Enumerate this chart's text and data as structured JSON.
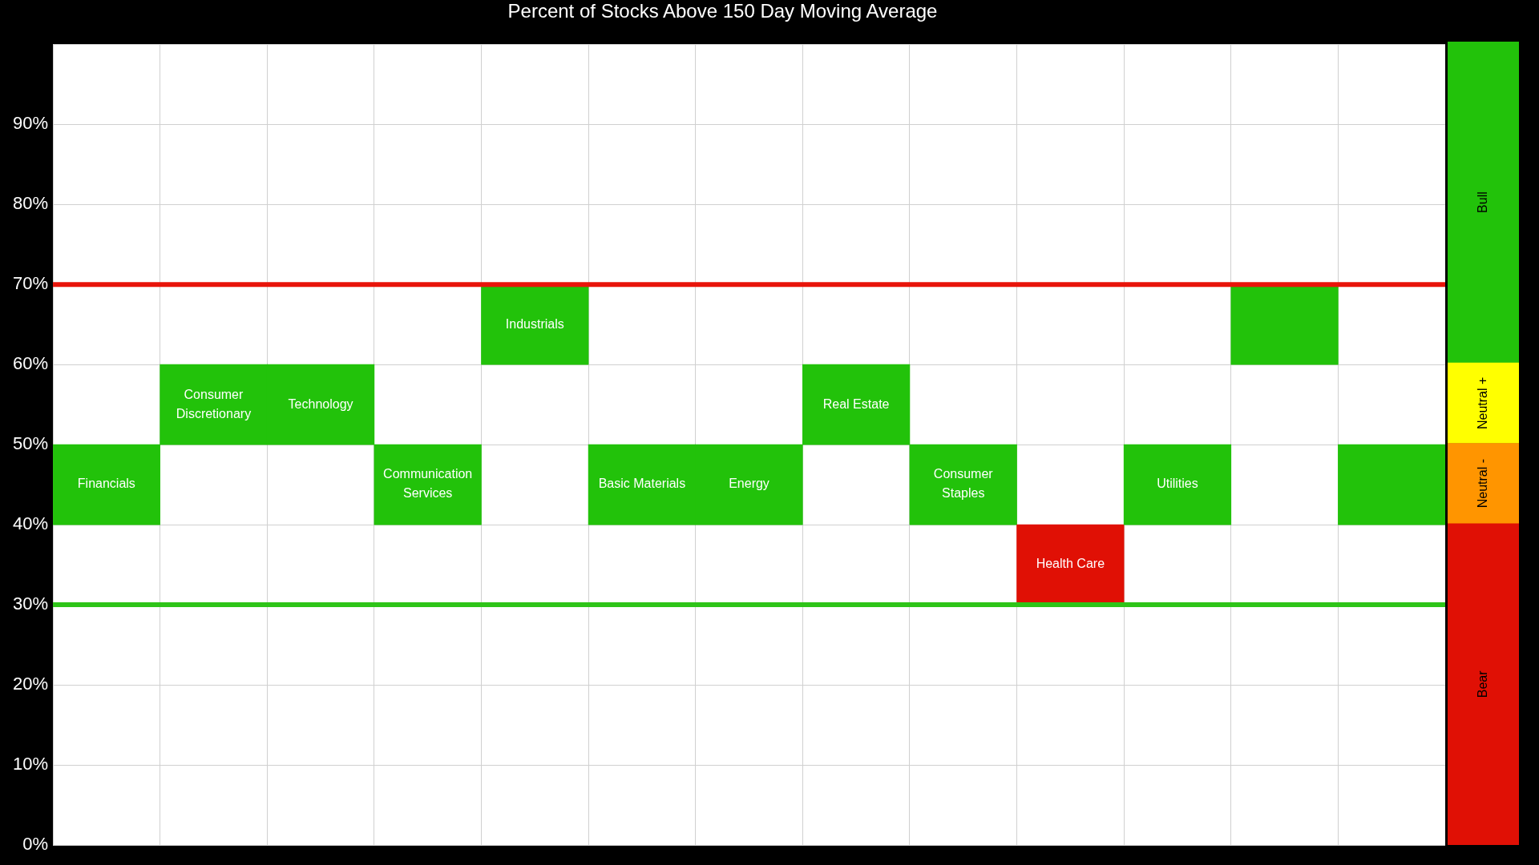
{
  "chart_data": [
    {
      "type": "bar",
      "title": "Percent of Stocks Above 150 Day Moving Average",
      "categories": [
        "Financials",
        "Consumer Discretionary",
        "Technology",
        "Communication Services",
        "Industrials",
        "Basic Materials",
        "Energy",
        "Real Estate",
        "Consumer Staples",
        "Health Care",
        "Utilities",
        null,
        null
      ],
      "base": [
        40,
        50,
        50,
        40,
        60,
        40,
        40,
        50,
        40,
        30,
        40,
        60,
        40
      ],
      "values": [
        10,
        10,
        10,
        10,
        10,
        10,
        10,
        10,
        10,
        10,
        10,
        10,
        10
      ],
      "colors": [
        "#22c20a",
        "#22c20a",
        "#22c20a",
        "#22c20a",
        "#22c20a",
        "#22c20a",
        "#22c20a",
        "#22c20a",
        "#22c20a",
        "#e01005",
        "#22c20a",
        "#22c20a",
        "#22c20a"
      ],
      "ylim": [
        0,
        100
      ],
      "yticks": [
        {
          "value": 0,
          "label": "0%"
        },
        {
          "value": 10,
          "label": "10%"
        },
        {
          "value": 20,
          "label": "20%"
        },
        {
          "value": 30,
          "label": "30%"
        },
        {
          "value": 40,
          "label": "40%"
        },
        {
          "value": 50,
          "label": "50%"
        },
        {
          "value": 60,
          "label": "60%"
        },
        {
          "value": 70,
          "label": "70%"
        },
        {
          "value": 80,
          "label": "80%"
        },
        {
          "value": 90,
          "label": "90%"
        },
        {
          "value": 100,
          "label": null
        }
      ],
      "grid": true,
      "tick_labels": "y",
      "ref_lines": [
        {
          "axis": "y",
          "value": 70,
          "color": "#e8140a"
        },
        {
          "axis": "y",
          "value": 30,
          "color": "#2ec418"
        }
      ]
    },
    {
      "type": "bar",
      "stacked": true,
      "categories": [
        null
      ],
      "series": [
        {
          "name": "Bear",
          "color": "#e01005",
          "values": [
            40
          ]
        },
        {
          "name": "Neutral -",
          "color": "#ff9500",
          "values": [
            10
          ]
        },
        {
          "name": "Neutral +",
          "color": "#ffff00",
          "values": [
            10
          ]
        },
        {
          "name": "Bull",
          "color": "#22c20a",
          "values": [
            40
          ]
        }
      ],
      "ylim": [
        0,
        100
      ],
      "tick_labels": false
    }
  ]
}
